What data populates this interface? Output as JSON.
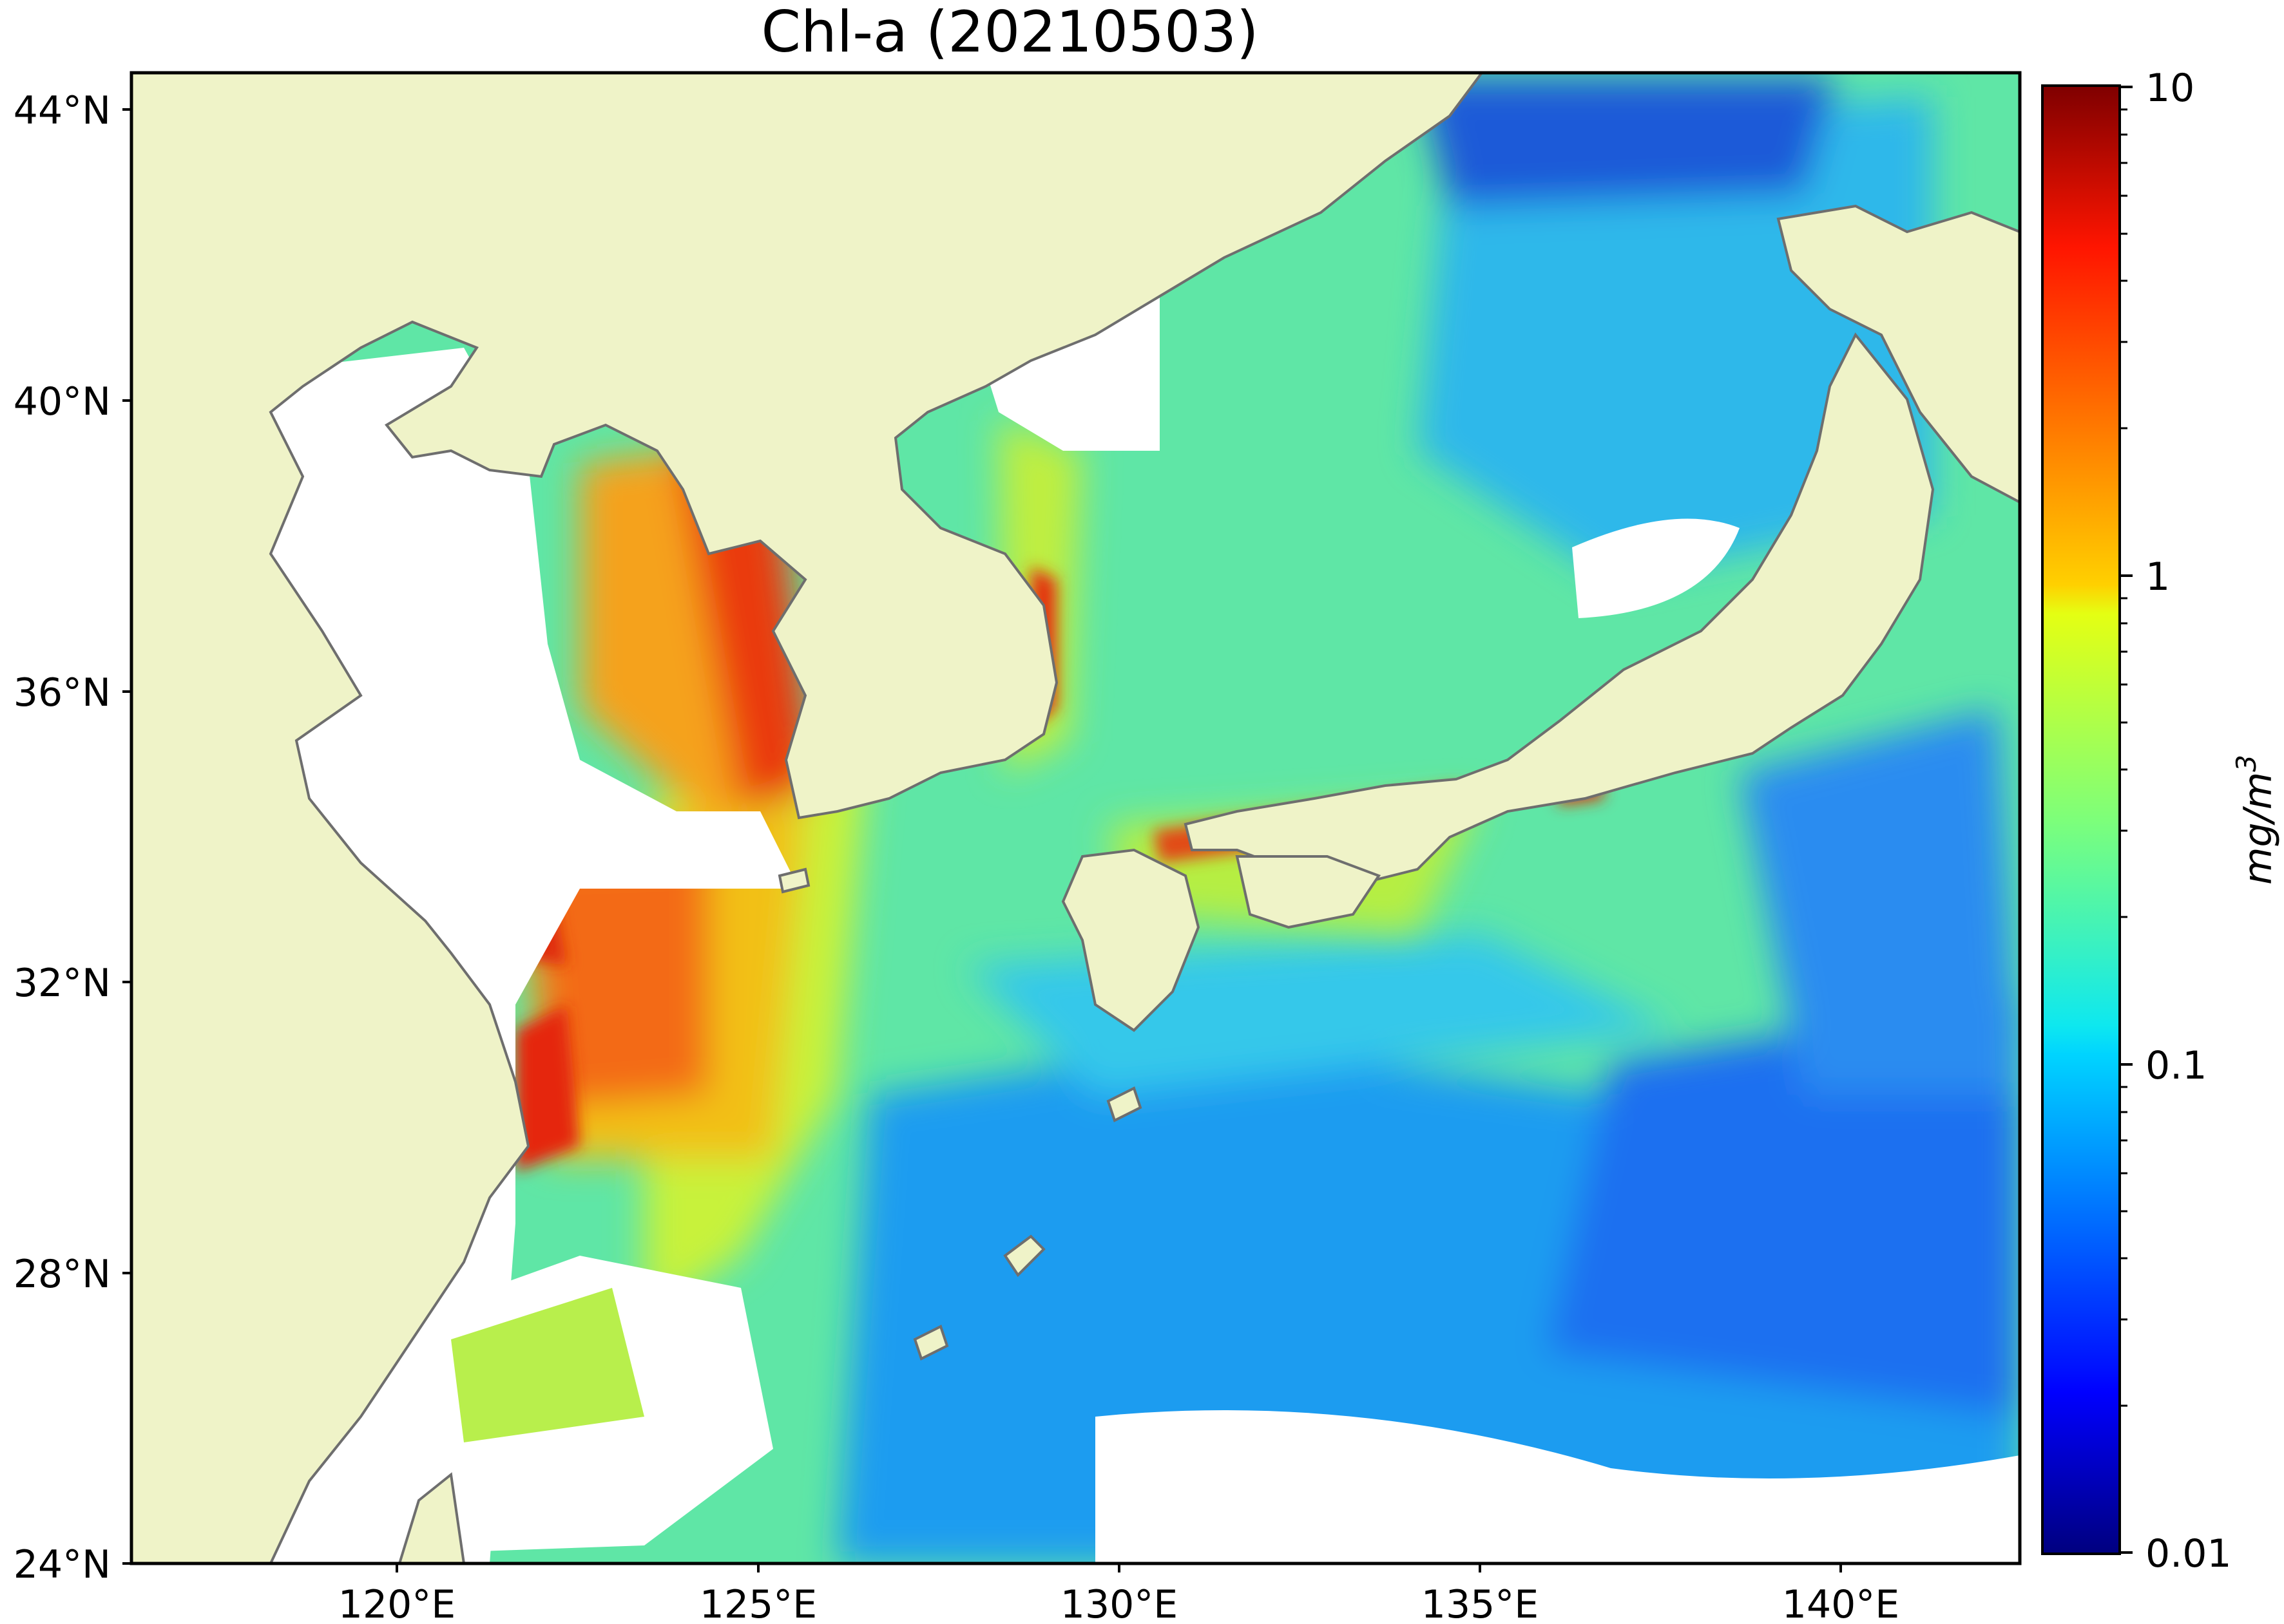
{
  "title": "Chl-a (20210503)",
  "map": {
    "lat_ticks": [
      "44°N",
      "40°N",
      "36°N",
      "32°N",
      "28°N",
      "24°N"
    ],
    "lon_ticks": [
      "120°E",
      "125°E",
      "130°E",
      "135°E",
      "140°E"
    ],
    "extent": {
      "lon_min": 116.8,
      "lon_max": 143.0,
      "lat_min": 24.0,
      "lat_max": 44.5
    },
    "land_color": "#eff3c8",
    "coast_color": "#6e6e6e",
    "missing_color": "#ffffff"
  },
  "colorbar": {
    "ticks": [
      "10",
      "1",
      "0.1",
      "0.01"
    ],
    "unit": "mg/m",
    "unit_exponent": "3",
    "scale": "log",
    "range": [
      0.01,
      10
    ],
    "colormap": "jet"
  }
}
